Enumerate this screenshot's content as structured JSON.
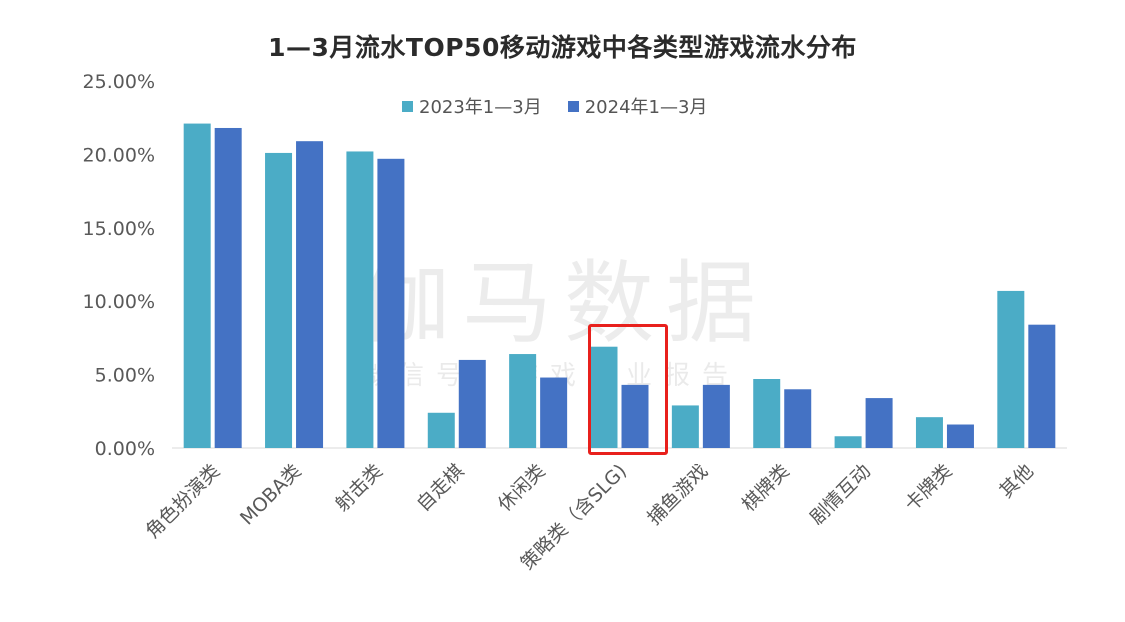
{
  "chart_data": {
    "type": "bar",
    "title": "1—3月流水TOP50移动游戏中各类型游戏流水分布",
    "categories": [
      "角色扮演类",
      "MOBA类",
      "射击类",
      "自走棋",
      "休闲类",
      "策略类（含SLG)",
      "捕鱼游戏",
      "棋牌类",
      "剧情互动",
      "卡牌类",
      "其他"
    ],
    "series": [
      {
        "name": "2023年1—3月",
        "color": "#4bacc6",
        "values": [
          22.1,
          20.1,
          20.2,
          2.4,
          6.4,
          6.9,
          2.9,
          4.7,
          0.8,
          2.1,
          10.7
        ]
      },
      {
        "name": "2024年1—3月",
        "color": "#4472c4",
        "values": [
          21.8,
          20.9,
          19.7,
          6.0,
          4.8,
          4.3,
          4.3,
          4.0,
          3.4,
          1.6,
          8.4
        ]
      }
    ],
    "ylim": [
      0,
      25
    ],
    "yticks": [
      "0.00%",
      "5.00%",
      "10.00%",
      "15.00%",
      "20.00%",
      "25.00%"
    ],
    "xlabel": "",
    "ylabel": "",
    "legend_position": "top-center",
    "grid": false,
    "highlighted_category": "策略类（含SLG)",
    "highlight_color": "#e8201c"
  },
  "watermark": {
    "main": "伽马数据",
    "sub": "微信号：游戏产业报告"
  }
}
